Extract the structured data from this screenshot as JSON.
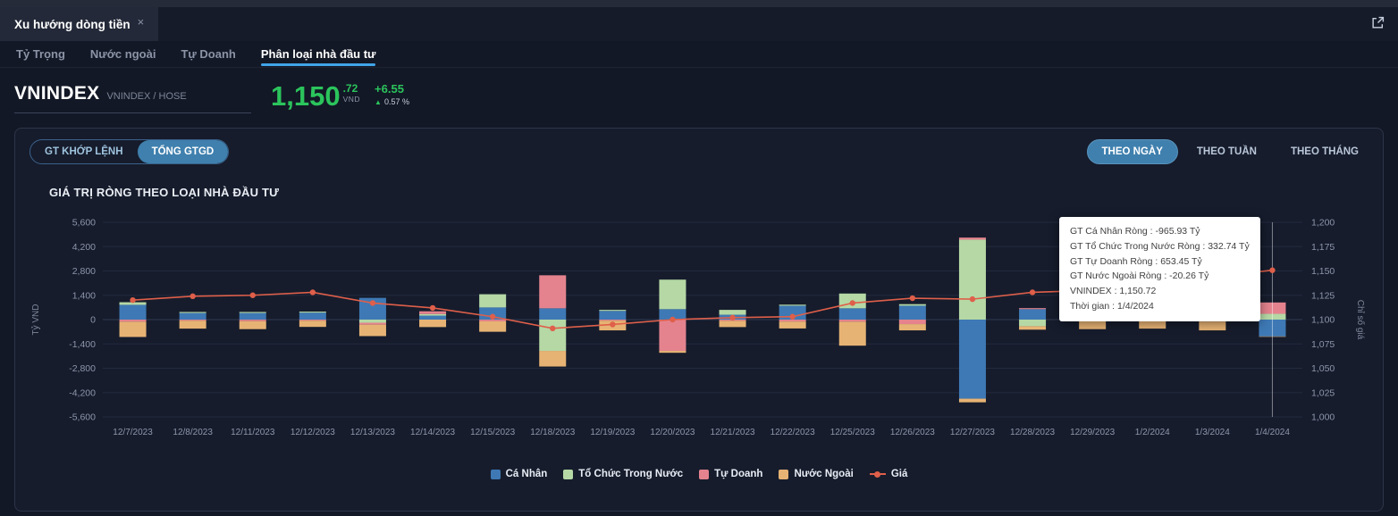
{
  "window": {
    "tab_title": "Xu hướng dòng tiền",
    "close_label": "×"
  },
  "nav": {
    "items": [
      {
        "label": "Tỷ Trọng",
        "active": false
      },
      {
        "label": "Nước ngoài",
        "active": false
      },
      {
        "label": "Tự Doanh",
        "active": false
      },
      {
        "label": "Phân loại nhà đầu tư",
        "active": true
      }
    ]
  },
  "index": {
    "symbol": "VNINDEX",
    "pair": "VNINDEX / HOSE",
    "price": "1,150",
    "price_decimal": ".72",
    "currency": "VND",
    "change": "+6.55",
    "direction_icon": "▲",
    "change_percent": "0.57 %"
  },
  "toolbar": {
    "buttons_left": [
      {
        "label": "GT KHỚP LỆNH",
        "active": false
      },
      {
        "label": "TỔNG GTGD",
        "active": true
      }
    ],
    "buttons_right": [
      {
        "label": "THEO NGÀY",
        "active": true
      },
      {
        "label": "THEO TUẦN",
        "active": false
      },
      {
        "label": "THEO THÁNG",
        "active": false
      }
    ]
  },
  "chart_title": "GIÁ TRỊ RÒNG THEO LOẠI NHÀ ĐẦU TƯ",
  "tooltip": {
    "lines": [
      "GT Cá Nhân Ròng : -965.93 Tỷ",
      "GT Tổ Chức Trong Nước Ròng : 332.74 Tỷ",
      "GT Tự Doanh Ròng : 653.45 Tỷ",
      "GT Nước Ngoài Ròng : -20.26 Tỷ",
      "VNINDEX : 1,150.72",
      "Thời gian : 1/4/2024"
    ]
  },
  "colors": {
    "accent_blue": "#3f80ae",
    "green": "#2bc45c",
    "tab_underline": "#41a4e9"
  },
  "chart_data": {
    "type": "bar",
    "subtype": "stacked-bars-with-line-overlay",
    "title": "GIÁ TRỊ RÒNG THEO LOẠI NHÀ ĐẦU TƯ",
    "ylabel_left": "Tỷ VND",
    "ylabel_right": "Chỉ số giá",
    "ylim_left": [
      -5600,
      5600
    ],
    "ytick_step_left": 1400,
    "ylim_right": [
      1000,
      1200
    ],
    "ytick_step_right": 25,
    "grid": true,
    "legend_position": "bottom",
    "highlighted_category": "1/4/2024",
    "categories": [
      "12/7/2023",
      "12/8/2023",
      "12/11/2023",
      "12/12/2023",
      "12/13/2023",
      "12/14/2023",
      "12/15/2023",
      "12/18/2023",
      "12/19/2023",
      "12/20/2023",
      "12/21/2023",
      "12/22/2023",
      "12/25/2023",
      "12/26/2023",
      "12/27/2023",
      "12/28/2023",
      "12/29/2023",
      "1/2/2024",
      "1/3/2024",
      "1/4/2024"
    ],
    "series": [
      {
        "name": "Cá Nhân",
        "color": "#3e79b5",
        "values": [
          850,
          380,
          380,
          400,
          1250,
          230,
          700,
          650,
          500,
          600,
          280,
          800,
          650,
          800,
          -4550,
          600,
          150,
          420,
          470,
          -965.93
        ]
      },
      {
        "name": "Tổ Chức Trong Nước",
        "color": "#b5d8a5",
        "values": [
          150,
          60,
          60,
          60,
          -180,
          90,
          760,
          -1800,
          60,
          1700,
          280,
          60,
          850,
          90,
          4600,
          -380,
          60,
          60,
          60,
          332.74
        ]
      },
      {
        "name": "Tự Doanh",
        "color": "#e4838e",
        "values": [
          -120,
          -60,
          -90,
          -60,
          -110,
          160,
          -100,
          1900,
          -60,
          -1800,
          -70,
          -110,
          -120,
          -260,
          120,
          60,
          -100,
          -60,
          -110,
          653.45
        ]
      },
      {
        "name": "Nước Ngoài",
        "color": "#e7b374",
        "values": [
          -880,
          -460,
          -460,
          -360,
          -660,
          -430,
          -600,
          -900,
          -560,
          -110,
          -360,
          -400,
          -1380,
          -360,
          -210,
          -200,
          -450,
          -460,
          -510,
          -20.26
        ]
      }
    ],
    "line": {
      "name": "Giá",
      "color": "#df5f4a",
      "axis": "right",
      "values": [
        1120,
        1124,
        1125,
        1128,
        1117,
        1112,
        1103,
        1091,
        1095,
        1100,
        1102,
        1103,
        1117,
        1122,
        1121,
        1128,
        1130,
        1131,
        1144,
        1150.72
      ]
    }
  }
}
